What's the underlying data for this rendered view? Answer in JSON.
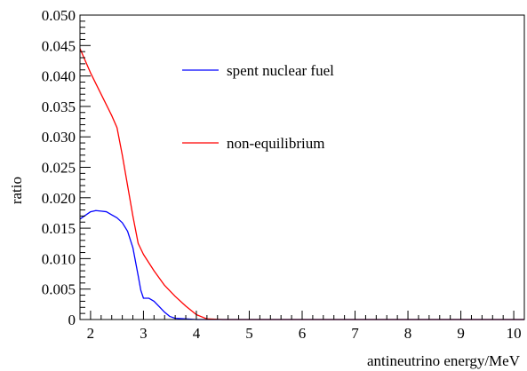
{
  "chart_data": {
    "type": "line",
    "xlabel": "antineutrino energy/MeV",
    "ylabel": "ratio",
    "xlim": [
      1.8,
      10.2
    ],
    "ylim": [
      0,
      0.05
    ],
    "x_ticks": [
      2,
      3,
      4,
      5,
      6,
      7,
      8,
      9,
      10
    ],
    "x_tick_labels": [
      "2",
      "3",
      "4",
      "5",
      "6",
      "7",
      "8",
      "9",
      "10"
    ],
    "y_ticks": [
      0,
      0.005,
      0.01,
      0.015,
      0.02,
      0.025,
      0.03,
      0.035,
      0.04,
      0.045,
      0.05
    ],
    "y_tick_labels": [
      "0",
      "0.005",
      "0.010",
      "0.015",
      "0.020",
      "0.025",
      "0.030",
      "0.035",
      "0.040",
      "0.045",
      "0.050"
    ],
    "grid": false,
    "legend_position": "upper-middle",
    "series": [
      {
        "name": "spent nuclear fuel",
        "color": "#0000ff",
        "x": [
          1.8,
          1.9,
          2.0,
          2.1,
          2.2,
          2.3,
          2.4,
          2.5,
          2.6,
          2.7,
          2.8,
          2.9,
          2.95,
          3.0,
          3.1,
          3.2,
          3.3,
          3.4,
          3.5,
          3.6,
          3.8,
          4.0,
          4.2,
          4.5,
          5.0,
          6.0,
          7.0,
          8.0,
          9.0,
          10.2
        ],
        "y": [
          0.0165,
          0.0171,
          0.0177,
          0.0179,
          0.0178,
          0.0177,
          0.0172,
          0.0167,
          0.0159,
          0.0145,
          0.0118,
          0.0072,
          0.0048,
          0.0035,
          0.0035,
          0.003,
          0.0021,
          0.0012,
          0.0005,
          0.0002,
          0.0001,
          0.0,
          0.0,
          0.0,
          0.0,
          0.0,
          0.0,
          0.0,
          0.0,
          0.0
        ]
      },
      {
        "name": "non-equilibrium",
        "color": "#ff0000",
        "x": [
          1.8,
          2.0,
          2.2,
          2.4,
          2.5,
          2.6,
          2.7,
          2.8,
          2.9,
          3.0,
          3.2,
          3.4,
          3.6,
          3.8,
          4.0,
          4.2,
          4.5,
          5.0,
          6.0,
          7.0,
          8.0,
          9.0,
          10.2
        ],
        "y": [
          0.0445,
          0.0405,
          0.037,
          0.0335,
          0.0315,
          0.027,
          0.022,
          0.017,
          0.0125,
          0.0107,
          0.008,
          0.0056,
          0.0038,
          0.0022,
          0.0008,
          0.0001,
          0.0,
          0.0,
          0.0,
          0.0,
          0.0,
          0.0,
          0.0
        ]
      }
    ]
  }
}
